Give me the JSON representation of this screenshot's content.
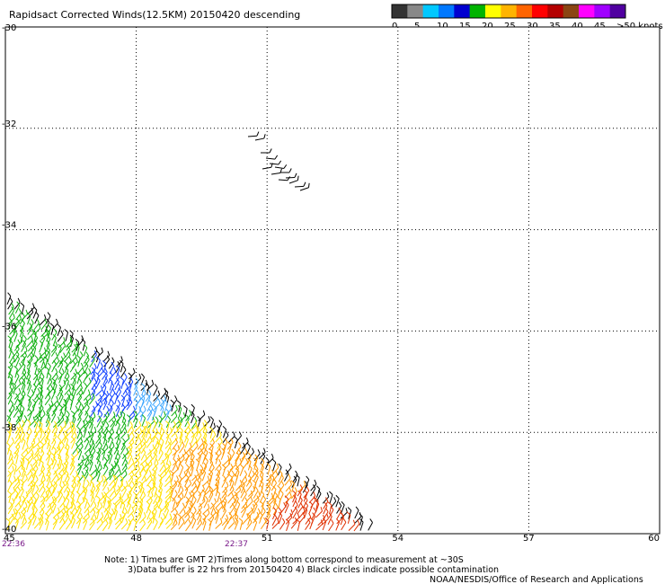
{
  "title": "Rapidsact Corrected Winds(12.5KM) 20150420 descending",
  "legend": {
    "unit": ">50 knots",
    "labels": [
      "0",
      "5",
      "10",
      "15",
      "20",
      "25",
      "30",
      "35",
      "40",
      "45"
    ],
    "colors": [
      "#333333",
      "#888888",
      "#00c8ff",
      "#0078ff",
      "#0000d0",
      "#00b400",
      "#ffff00",
      "#ffb400",
      "#ff6400",
      "#ff0000",
      "#b40000",
      "#8b4513",
      "#ff00ff",
      "#a000ff",
      "#5000a0"
    ]
  },
  "axes": {
    "lat_labels": [
      "-30",
      "-32",
      "-34",
      "-36",
      "-38",
      "-40"
    ],
    "lon_labels": [
      "45",
      "48",
      "51",
      "54",
      "57",
      "60"
    ],
    "lat_range": [
      -30,
      -40
    ],
    "lon_range": [
      45,
      60
    ],
    "grid": "dotted"
  },
  "times": [
    "22:36",
    "22:37"
  ],
  "notes": [
    "Note: 1) Times are GMT 2)Times along bottom correspond to measurement at ~30S",
    "3)Data buffer is 22 hrs from 20150420 4) Black circles indicate possible contamination"
  ],
  "credit": "NOAA/NESDIS/Office of Research and Applications",
  "colors": {
    "blue": "#1040ff",
    "cyan": "#40a8ff",
    "green": "#10b010",
    "yellow": "#ffe000",
    "orange": "#ff9800",
    "red": "#e03000",
    "black": "#000000"
  }
}
